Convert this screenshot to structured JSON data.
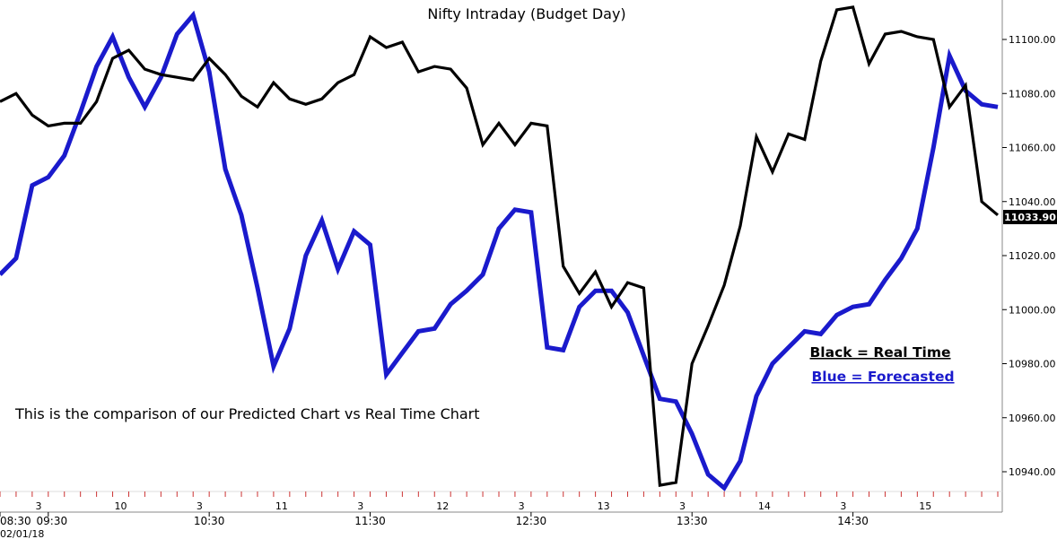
{
  "chart_data": {
    "type": "line",
    "title": "Nifty Intraday (Budget Day)",
    "annotation": "This is the comparison of our Predicted Chart vs Real Time Chart",
    "legend": [
      {
        "label": "Black = Real Time",
        "color": "#000000"
      },
      {
        "label": "Blue = Forecasted",
        "color": "#1a1acc"
      }
    ],
    "date_label": "02/01/18",
    "last_value_label": "11033.90",
    "ylim": [
      10929,
      11113
    ],
    "y_ticks": [
      "11100.00",
      "11080.00",
      "11060.00",
      "11040.00",
      "11020.00",
      "11000.00",
      "10980.00",
      "10960.00",
      "10940.00"
    ],
    "y_tick_values": [
      11100,
      11080,
      11060,
      11040,
      11020,
      11000,
      10980,
      10960,
      10940
    ],
    "x_range": [
      0,
      62
    ],
    "x_major_labels": [
      {
        "x": 0,
        "label": "08:30"
      },
      {
        "x": 3,
        "label": "09:30"
      },
      {
        "x": 13,
        "label": "10:30"
      },
      {
        "x": 23,
        "label": "11:30"
      },
      {
        "x": 33,
        "label": "12:30"
      },
      {
        "x": 43,
        "label": "13:30"
      },
      {
        "x": 53,
        "label": "14:30"
      }
    ],
    "x_minor_labels": [
      {
        "x": 2.4,
        "label": "3"
      },
      {
        "x": 7.5,
        "label": "10"
      },
      {
        "x": 12.4,
        "label": "3"
      },
      {
        "x": 17.5,
        "label": "11"
      },
      {
        "x": 22.4,
        "label": "3"
      },
      {
        "x": 27.5,
        "label": "12"
      },
      {
        "x": 32.4,
        "label": "3"
      },
      {
        "x": 37.5,
        "label": "13"
      },
      {
        "x": 42.4,
        "label": "3"
      },
      {
        "x": 47.5,
        "label": "14"
      },
      {
        "x": 52.4,
        "label": "3"
      },
      {
        "x": 57.5,
        "label": "15"
      }
    ],
    "series": [
      {
        "name": "Real Time",
        "color": "#000000",
        "x": [
          0,
          1,
          2,
          3,
          4,
          5,
          6,
          7,
          8,
          9,
          10,
          11,
          12,
          13,
          14,
          15,
          16,
          17,
          18,
          19,
          20,
          21,
          22,
          23,
          24,
          25,
          26,
          27,
          28,
          29,
          30,
          31,
          32,
          33,
          34,
          35,
          36,
          37,
          38,
          39,
          40,
          41,
          42,
          43,
          44,
          45,
          46,
          47,
          48,
          49,
          50,
          51,
          52,
          53,
          54,
          55,
          56,
          57,
          58,
          59,
          60,
          61,
          62
        ],
        "values": [
          11077,
          11080,
          11072,
          11068,
          11069,
          11069,
          11077,
          11093,
          11096,
          11089,
          11087,
          11086,
          11085,
          11093,
          11087,
          11079,
          11075,
          11084,
          11078,
          11076,
          11078,
          11084,
          11087,
          11101,
          11097,
          11099,
          11088,
          11090,
          11089,
          11082,
          11061,
          11069,
          11061,
          11069,
          11068,
          11016,
          11006,
          11014,
          11001,
          11010,
          11008,
          10935,
          10936,
          10980,
          10994,
          11009,
          11031,
          11064,
          11051,
          11065,
          11063,
          11092,
          11111,
          11112,
          11091,
          11102,
          11103,
          11101,
          11100,
          11075,
          11083,
          11040,
          11035
        ]
      },
      {
        "name": "Forecasted",
        "color": "#1a1acc",
        "x": [
          0,
          1,
          2,
          3,
          4,
          5,
          6,
          7,
          8,
          9,
          10,
          11,
          12,
          13,
          14,
          15,
          16,
          17,
          18,
          19,
          20,
          21,
          22,
          23,
          24,
          25,
          26,
          27,
          28,
          29,
          30,
          31,
          32,
          33,
          34,
          35,
          36,
          37,
          38,
          39,
          40,
          41,
          42,
          43,
          44,
          45,
          46,
          47,
          48,
          49,
          50,
          51,
          52,
          53,
          54,
          55,
          56,
          57,
          58,
          59,
          60,
          61,
          62
        ],
        "values": [
          11013,
          11019,
          11046,
          11049,
          11057,
          11073,
          11090,
          11101,
          11086,
          11075,
          11086,
          11102,
          11109,
          11088,
          11052,
          11035,
          11008,
          10979,
          10993,
          11020,
          11033,
          11015,
          11029,
          11024,
          10976,
          10984,
          10992,
          10993,
          11002,
          11007,
          11013,
          11030,
          11037,
          11036,
          10986,
          10985,
          11001,
          11007,
          11007,
          10999,
          10983,
          10967,
          10966,
          10954,
          10939,
          10934,
          10944,
          10968,
          10980,
          10986,
          10992,
          10991,
          10998,
          11001,
          11002,
          11011,
          11019,
          11030,
          11060,
          11094,
          11081,
          11076,
          11075
        ]
      }
    ]
  }
}
